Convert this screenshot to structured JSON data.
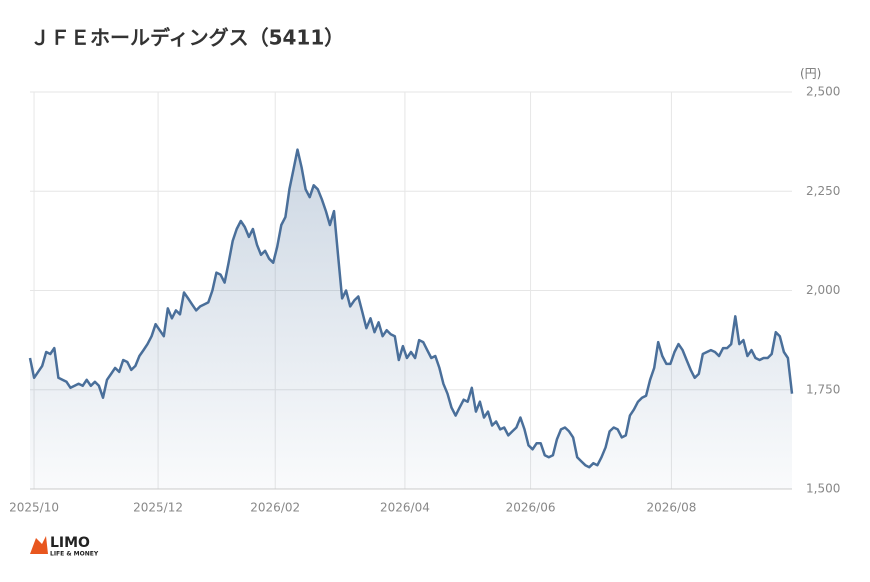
{
  "chart_data": {
    "type": "line",
    "title": "ＪＦＥホールディングス（5411）",
    "y_label": "(円)",
    "series": [
      {
        "name": "JFEホールディングス",
        "color": "#4a6f9a",
        "values": [
          1830,
          1780,
          1795,
          1810,
          1845,
          1840,
          1855,
          1780,
          1775,
          1770,
          1755,
          1760,
          1765,
          1760,
          1775,
          1760,
          1770,
          1760,
          1730,
          1775,
          1790,
          1805,
          1795,
          1825,
          1820,
          1800,
          1810,
          1835,
          1850,
          1865,
          1885,
          1915,
          1900,
          1885,
          1955,
          1930,
          1950,
          1940,
          1995,
          1980,
          1965,
          1950,
          1960,
          1965,
          1970,
          2000,
          2045,
          2040,
          2020,
          2070,
          2125,
          2155,
          2175,
          2160,
          2135,
          2155,
          2115,
          2090,
          2100,
          2080,
          2070,
          2110,
          2165,
          2185,
          2255,
          2305,
          2355,
          2310,
          2255,
          2235,
          2265,
          2255,
          2230,
          2200,
          2165,
          2200,
          2090,
          1980,
          2000,
          1960,
          1975,
          1985,
          1945,
          1905,
          1930,
          1895,
          1920,
          1885,
          1900,
          1890,
          1885,
          1825,
          1860,
          1830,
          1845,
          1830,
          1875,
          1870,
          1850,
          1830,
          1835,
          1805,
          1765,
          1740,
          1705,
          1685,
          1705,
          1725,
          1720,
          1755,
          1695,
          1720,
          1680,
          1695,
          1660,
          1670,
          1650,
          1655,
          1635,
          1645,
          1655,
          1680,
          1650,
          1610,
          1600,
          1615,
          1615,
          1585,
          1580,
          1585,
          1625,
          1650,
          1655,
          1645,
          1630,
          1580,
          1570,
          1560,
          1555,
          1565,
          1560,
          1580,
          1605,
          1645,
          1655,
          1650,
          1630,
          1635,
          1685,
          1700,
          1720,
          1730,
          1735,
          1775,
          1805,
          1870,
          1835,
          1815,
          1815,
          1845,
          1865,
          1850,
          1825,
          1800,
          1780,
          1790,
          1840,
          1845,
          1850,
          1845,
          1835,
          1855,
          1855,
          1865,
          1935,
          1865,
          1875,
          1835,
          1850,
          1830,
          1825,
          1830,
          1830,
          1840,
          1895,
          1885,
          1845,
          1830,
          1740
        ]
      }
    ],
    "xlim": [
      0,
      188
    ],
    "xticks": [
      {
        "value": 1,
        "label": "2025/10"
      },
      {
        "value": 31.6,
        "label": "2025/12"
      },
      {
        "value": 60.5,
        "label": "2026/02"
      },
      {
        "value": 92.5,
        "label": "2026/04"
      },
      {
        "value": 123.5,
        "label": "2026/06"
      },
      {
        "value": 158.25,
        "label": "2026/08"
      }
    ],
    "ylim": [
      1500,
      2500
    ],
    "yticks": [
      {
        "value": 1500,
        "label": "1,500"
      },
      {
        "value": 1750,
        "label": "1,750"
      },
      {
        "value": 2000,
        "label": "2,000"
      },
      {
        "value": 2250,
        "label": "2,250"
      },
      {
        "value": 2500,
        "label": "2,500"
      }
    ],
    "grid": true,
    "area": true
  },
  "logo": {
    "text": "LIMO",
    "tagline": "LIFE & MONEY"
  }
}
